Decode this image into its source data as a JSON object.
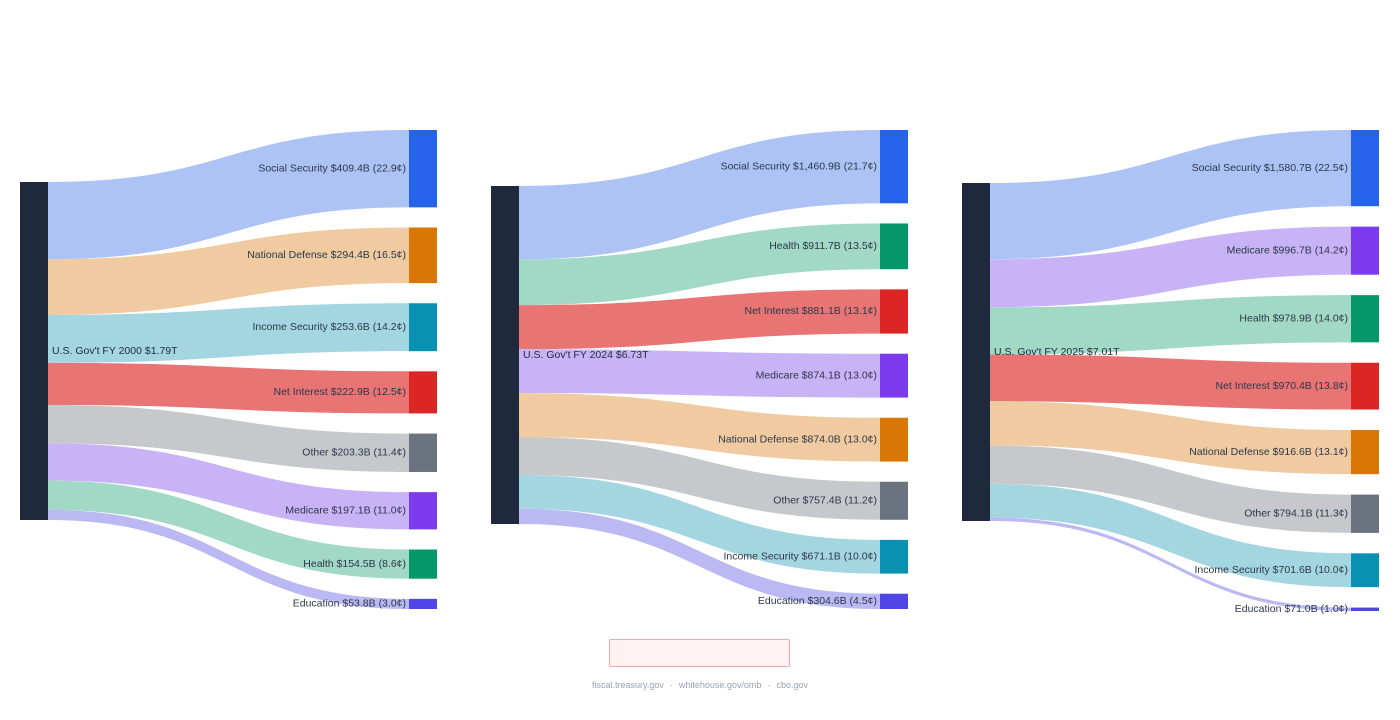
{
  "chart_data": [
    {
      "type": "sankey",
      "source": "U.S. Gov't FY 2000 $1.79T",
      "targets": [
        {
          "name": "Social Security",
          "amount": "$409.4B",
          "share": "(22.9¢)",
          "value": 409.4,
          "color": "#2563eb",
          "flow_color": "#adc3f5"
        },
        {
          "name": "National Defense",
          "amount": "$294.4B",
          "share": "(16.5¢)",
          "value": 294.4,
          "color": "#d97706",
          "flow_color": "#f0cba1"
        },
        {
          "name": "Income Security",
          "amount": "$253.6B",
          "share": "(14.2¢)",
          "value": 253.6,
          "color": "#0891b2",
          "flow_color": "#a4d6e2"
        },
        {
          "name": "Net Interest",
          "amount": "$222.9B",
          "share": "(12.5¢)",
          "value": 222.9,
          "color": "#dc2626",
          "flow_color": "#e87474"
        },
        {
          "name": "Other",
          "amount": "$203.3B",
          "share": "(11.4¢)",
          "value": 203.3,
          "color": "#6b7280",
          "flow_color": "#c6c8cc"
        },
        {
          "name": "Medicare",
          "amount": "$197.1B",
          "share": "(11.0¢)",
          "value": 197.1,
          "color": "#7c3aed",
          "flow_color": "#c9b3f7"
        },
        {
          "name": "Health",
          "amount": "$154.5B",
          "share": "(8.6¢)",
          "value": 154.5,
          "color": "#059669",
          "flow_color": "#a2d8c6"
        },
        {
          "name": "Education",
          "amount": "$53.8B",
          "share": "(3.0¢)",
          "value": 53.8,
          "color": "#4f46e5",
          "flow_color": "#bbb8f3"
        }
      ]
    },
    {
      "type": "sankey",
      "source": "U.S. Gov't FY 2024 $6.73T",
      "targets": [
        {
          "name": "Social Security",
          "amount": "$1,460.9B",
          "share": "(21.7¢)",
          "value": 1460.9,
          "color": "#2563eb",
          "flow_color": "#adc3f5"
        },
        {
          "name": "Health",
          "amount": "$911.7B",
          "share": "(13.5¢)",
          "value": 911.7,
          "color": "#059669",
          "flow_color": "#a2d8c6"
        },
        {
          "name": "Net Interest",
          "amount": "$881.1B",
          "share": "(13.1¢)",
          "value": 881.1,
          "color": "#dc2626",
          "flow_color": "#e87474"
        },
        {
          "name": "Medicare",
          "amount": "$874.1B",
          "share": "(13.0¢)",
          "value": 874.1,
          "color": "#7c3aed",
          "flow_color": "#c9b3f7"
        },
        {
          "name": "National Defense",
          "amount": "$874.0B",
          "share": "(13.0¢)",
          "value": 874.0,
          "color": "#d97706",
          "flow_color": "#f0cba1"
        },
        {
          "name": "Other",
          "amount": "$757.4B",
          "share": "(11.2¢)",
          "value": 757.4,
          "color": "#6b7280",
          "flow_color": "#c6c8cc"
        },
        {
          "name": "Income Security",
          "amount": "$671.1B",
          "share": "(10.0¢)",
          "value": 671.1,
          "color": "#0891b2",
          "flow_color": "#a4d6e2"
        },
        {
          "name": "Education",
          "amount": "$304.6B",
          "share": "(4.5¢)",
          "value": 304.6,
          "color": "#4f46e5",
          "flow_color": "#bbb8f3"
        }
      ]
    },
    {
      "type": "sankey",
      "source": "U.S. Gov't FY 2025 $7.01T",
      "targets": [
        {
          "name": "Social Security",
          "amount": "$1,580.7B",
          "share": "(22.5¢)",
          "value": 1580.7,
          "color": "#2563eb",
          "flow_color": "#adc3f5"
        },
        {
          "name": "Medicare",
          "amount": "$996.7B",
          "share": "(14.2¢)",
          "value": 996.7,
          "color": "#7c3aed",
          "flow_color": "#c9b3f7"
        },
        {
          "name": "Health",
          "amount": "$978.9B",
          "share": "(14.0¢)",
          "value": 978.9,
          "color": "#059669",
          "flow_color": "#a2d8c6"
        },
        {
          "name": "Net Interest",
          "amount": "$970.4B",
          "share": "(13.8¢)",
          "value": 970.4,
          "color": "#dc2626",
          "flow_color": "#e87474"
        },
        {
          "name": "National Defense",
          "amount": "$916.6B",
          "share": "(13.1¢)",
          "value": 916.6,
          "color": "#d97706",
          "flow_color": "#f0cba1"
        },
        {
          "name": "Other",
          "amount": "$794.1B",
          "share": "(11.3¢)",
          "value": 794.1,
          "color": "#6b7280",
          "flow_color": "#c6c8cc"
        },
        {
          "name": "Income Security",
          "amount": "$701.6B",
          "share": "(10.0¢)",
          "value": 701.6,
          "color": "#0891b2",
          "flow_color": "#a4d6e2"
        },
        {
          "name": "Education",
          "amount": "$71.0B",
          "share": "(1.0¢)",
          "value": 71.0,
          "color": "#4f46e5",
          "flow_color": "#bbb8f3"
        }
      ]
    }
  ],
  "colors": {
    "source_node": "#1e293b",
    "notice_fill": "#fef2f2",
    "notice_border": "#fca5a5",
    "footer_text": "#94a3b8"
  },
  "footer": {
    "link1": "fiscal.treasury.gov",
    "link2": "whitehouse.gov/omb",
    "link3": "cbo.gov",
    "separator": "·"
  }
}
